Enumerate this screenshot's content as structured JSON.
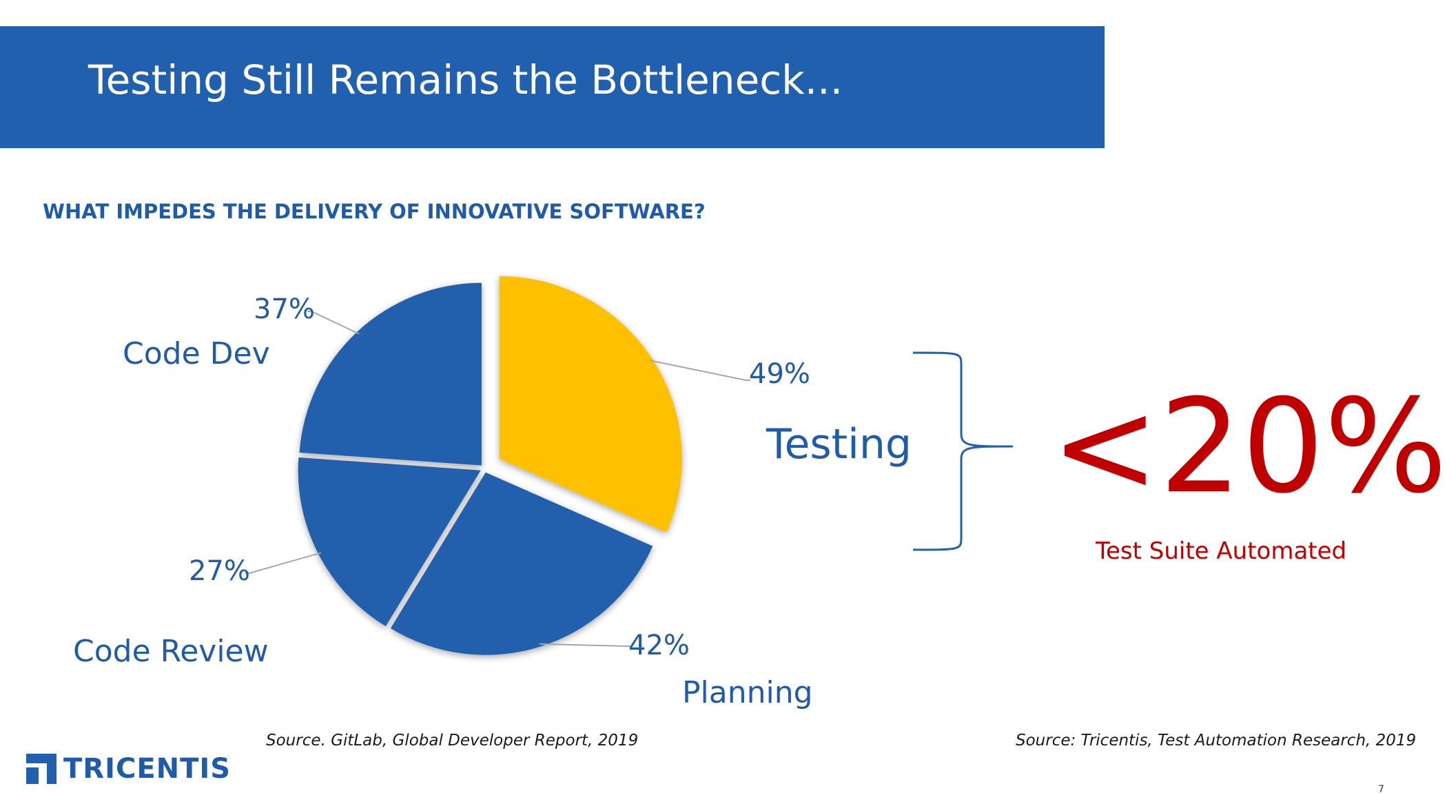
{
  "slide": {
    "title": "Testing Still Remains the Bottleneck...",
    "page_number": "7"
  },
  "chart_data": {
    "type": "pie",
    "title": "WHAT IMPEDES THE DELIVERY OF INNOVATIVE SOFTWARE?",
    "slices": [
      {
        "label": "Testing",
        "value": 49,
        "value_label": "49%",
        "color": "#ffc000",
        "exploded": true
      },
      {
        "label": "Planning",
        "value": 42,
        "value_label": "42%",
        "color": "#2060ae",
        "exploded": false
      },
      {
        "label": "Code Review",
        "value": 27,
        "value_label": "27%",
        "color": "#2060ae",
        "exploded": false
      },
      {
        "label": "Code Dev",
        "value": 37,
        "value_label": "37%",
        "color": "#2060ae",
        "exploded": false
      }
    ],
    "source": "Source. GitLab, Global Developer Report, 2019"
  },
  "stat": {
    "value": "<20%",
    "label": "Test Suite Automated",
    "source": "Source: Tricentis, Test Automation Research, 2019",
    "color": "#c00000"
  },
  "brand": {
    "logo_text": "TRICENTIS",
    "logo_icon": "tricentis-logo-icon",
    "color": "#1f5ba8"
  }
}
